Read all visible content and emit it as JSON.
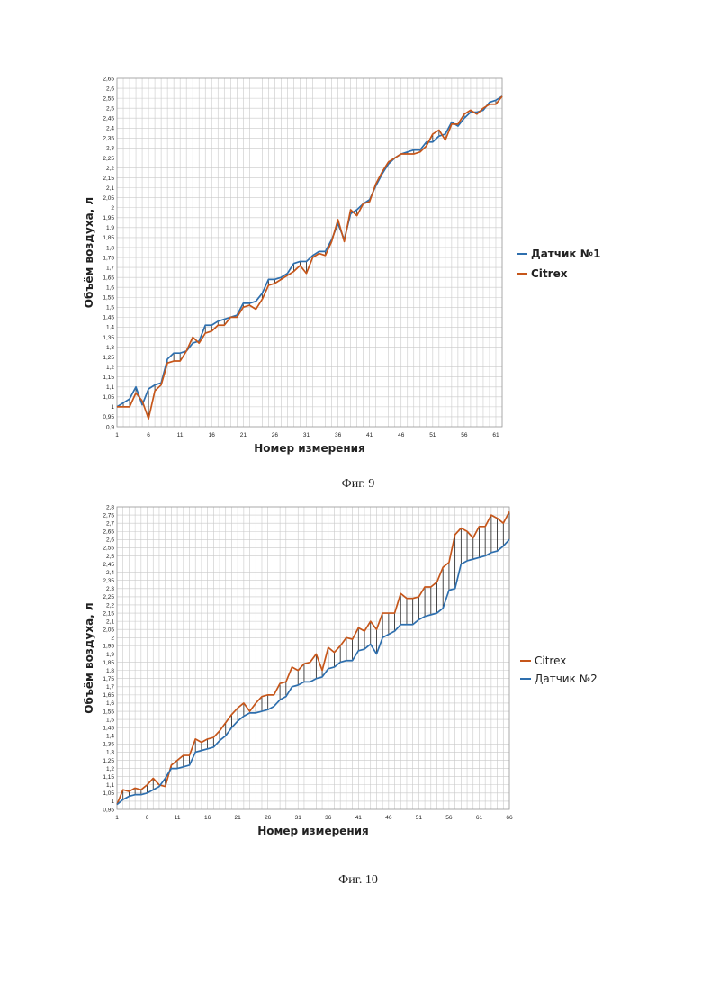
{
  "colors": {
    "sensor": "#2e6fae",
    "citrex": "#c6561a",
    "grid": "#c9c9c9",
    "hatch": "#222222"
  },
  "chart_data": [
    {
      "type": "line",
      "caption": "Фиг. 9",
      "xlabel": "Номер измерения",
      "ylabel": "Объём воздуха, л",
      "ylim": [
        0.9,
        2.65
      ],
      "ytick_step": 0.05,
      "ytick_labels": [
        "0,9",
        "0,95",
        "1",
        "1,05",
        "1,1",
        "1,15",
        "1,2",
        "1,25",
        "1,3",
        "1,35",
        "1,4",
        "1,45",
        "1,5",
        "1,55",
        "1,6",
        "1,65",
        "1,7",
        "1,75",
        "1,8",
        "1,85",
        "1,9",
        "1,95",
        "2",
        "2,05",
        "2,1",
        "2,15",
        "2,2",
        "2,25",
        "2,3",
        "2,35",
        "2,4",
        "2,45",
        "2,5",
        "2,55",
        "2,6",
        "2,65"
      ],
      "xlim": [
        1,
        62
      ],
      "xtick_values": [
        1,
        6,
        11,
        16,
        21,
        26,
        31,
        36,
        41,
        46,
        51,
        56,
        61
      ],
      "xtick_labels": [
        "1",
        "6",
        "11",
        "16",
        "21",
        "26",
        "31",
        "36",
        "41",
        "46",
        "51",
        "56",
        "61"
      ],
      "grid": true,
      "legend": "right",
      "legend_bold": true,
      "series": [
        {
          "name": "Датчик №1",
          "color_key": "sensor",
          "values": [
            1.0,
            1.02,
            1.04,
            1.1,
            1.01,
            1.09,
            1.11,
            1.12,
            1.24,
            1.27,
            1.27,
            1.28,
            1.32,
            1.33,
            1.41,
            1.41,
            1.43,
            1.44,
            1.45,
            1.46,
            1.52,
            1.52,
            1.53,
            1.57,
            1.64,
            1.64,
            1.65,
            1.67,
            1.72,
            1.73,
            1.73,
            1.76,
            1.78,
            1.78,
            1.84,
            1.92,
            1.84,
            1.97,
            1.99,
            2.02,
            2.04,
            2.11,
            2.17,
            2.22,
            2.25,
            2.27,
            2.28,
            2.29,
            2.29,
            2.33,
            2.33,
            2.36,
            2.37,
            2.43,
            2.41,
            2.45,
            2.48,
            2.48,
            2.49,
            2.53,
            2.54,
            2.56
          ]
        },
        {
          "name": "Citrex",
          "color_key": "citrex",
          "values": [
            1.0,
            1.0,
            1.0,
            1.07,
            1.03,
            0.94,
            1.08,
            1.11,
            1.22,
            1.23,
            1.23,
            1.28,
            1.35,
            1.32,
            1.37,
            1.38,
            1.41,
            1.41,
            1.45,
            1.45,
            1.5,
            1.51,
            1.49,
            1.54,
            1.61,
            1.62,
            1.64,
            1.66,
            1.68,
            1.71,
            1.67,
            1.75,
            1.77,
            1.76,
            1.83,
            1.94,
            1.83,
            1.99,
            1.96,
            2.02,
            2.03,
            2.12,
            2.18,
            2.23,
            2.25,
            2.27,
            2.27,
            2.27,
            2.28,
            2.31,
            2.37,
            2.39,
            2.34,
            2.42,
            2.42,
            2.47,
            2.49,
            2.47,
            2.5,
            2.52,
            2.52,
            2.56
          ]
        }
      ]
    },
    {
      "type": "line",
      "caption": "Фиг. 10",
      "xlabel": "Номер измерения",
      "ylabel": "Объём воздуха, л",
      "ylim": [
        0.95,
        2.8
      ],
      "ytick_step": 0.05,
      "ytick_labels": [
        "0,95",
        "1",
        "1,05",
        "1,1",
        "1,15",
        "1,2",
        "1,25",
        "1,3",
        "1,35",
        "1,4",
        "1,45",
        "1,5",
        "1,55",
        "1,6",
        "1,65",
        "1,7",
        "1,75",
        "1,8",
        "1,85",
        "1,9",
        "1,95",
        "2",
        "2,05",
        "2,1",
        "2,15",
        "2,2",
        "2,25",
        "2,3",
        "2,35",
        "2,4",
        "2,45",
        "2,5",
        "2,55",
        "2,6",
        "2,65",
        "2,7",
        "2,75",
        "2,8"
      ],
      "xlim": [
        1,
        66
      ],
      "xtick_values": [
        1,
        6,
        11,
        16,
        21,
        26,
        31,
        36,
        41,
        46,
        51,
        56,
        61,
        66
      ],
      "xtick_labels": [
        "1",
        "6",
        "11",
        "16",
        "21",
        "26",
        "31",
        "36",
        "41",
        "46",
        "51",
        "56",
        "61",
        "66"
      ],
      "grid": true,
      "legend": "right",
      "legend_bold": false,
      "series": [
        {
          "name": "Citrex",
          "color_key": "citrex",
          "values": [
            0.98,
            1.07,
            1.06,
            1.08,
            1.07,
            1.1,
            1.14,
            1.1,
            1.09,
            1.22,
            1.25,
            1.28,
            1.28,
            1.38,
            1.36,
            1.38,
            1.39,
            1.43,
            1.48,
            1.53,
            1.57,
            1.6,
            1.55,
            1.6,
            1.64,
            1.65,
            1.65,
            1.72,
            1.73,
            1.82,
            1.8,
            1.84,
            1.85,
            1.9,
            1.8,
            1.94,
            1.91,
            1.95,
            2.0,
            1.99,
            2.06,
            2.04,
            2.1,
            2.05,
            2.15,
            2.15,
            2.15,
            2.27,
            2.24,
            2.24,
            2.25,
            2.31,
            2.31,
            2.34,
            2.43,
            2.46,
            2.63,
            2.67,
            2.65,
            2.61,
            2.68,
            2.68,
            2.75,
            2.73,
            2.7,
            2.77
          ]
        },
        {
          "name": "Датчик №2",
          "color_key": "sensor",
          "values": [
            0.98,
            1.01,
            1.03,
            1.04,
            1.04,
            1.05,
            1.07,
            1.09,
            1.14,
            1.2,
            1.2,
            1.21,
            1.22,
            1.3,
            1.31,
            1.32,
            1.33,
            1.37,
            1.4,
            1.45,
            1.49,
            1.52,
            1.54,
            1.54,
            1.55,
            1.56,
            1.58,
            1.62,
            1.64,
            1.7,
            1.71,
            1.73,
            1.73,
            1.75,
            1.76,
            1.81,
            1.82,
            1.85,
            1.86,
            1.86,
            1.92,
            1.93,
            1.96,
            1.9,
            2.0,
            2.02,
            2.04,
            2.08,
            2.08,
            2.08,
            2.11,
            2.13,
            2.14,
            2.15,
            2.18,
            2.29,
            2.3,
            2.45,
            2.47,
            2.48,
            2.49,
            2.5,
            2.52,
            2.53,
            2.56,
            2.6
          ]
        }
      ]
    }
  ]
}
